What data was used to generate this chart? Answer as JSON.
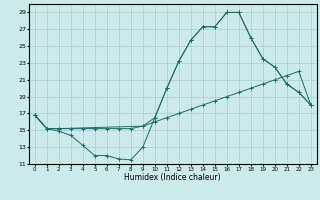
{
  "xlabel": "Humidex (Indice chaleur)",
  "bg_color": "#cceaea",
  "grid_color": "#aacccc",
  "line_color": "#1a6b6b",
  "xlim": [
    -0.5,
    23.5
  ],
  "ylim": [
    11,
    30
  ],
  "yticks": [
    11,
    13,
    15,
    17,
    19,
    21,
    23,
    25,
    27,
    29
  ],
  "xticks": [
    0,
    1,
    2,
    3,
    4,
    5,
    6,
    7,
    8,
    9,
    10,
    11,
    12,
    13,
    14,
    15,
    16,
    17,
    18,
    19,
    20,
    21,
    22,
    23
  ],
  "series1_x": [
    0,
    1,
    2,
    3,
    4,
    5,
    6,
    7,
    8,
    9,
    10,
    11,
    12,
    13,
    14,
    15,
    16,
    17,
    18,
    19,
    20,
    21,
    22,
    23
  ],
  "series1_y": [
    16.8,
    15.2,
    14.9,
    14.4,
    13.2,
    12.0,
    12.0,
    11.6,
    11.5,
    13.0,
    16.5,
    20.0,
    23.2,
    25.7,
    27.3,
    27.3,
    29.0,
    29.0,
    26.0,
    23.5,
    22.5,
    20.5,
    19.5,
    18.0
  ],
  "series2_x": [
    0,
    1,
    2,
    3,
    4,
    5,
    6,
    7,
    8,
    9,
    10,
    11,
    12,
    13,
    14,
    15,
    16,
    17,
    18,
    19,
    20,
    21,
    22,
    23
  ],
  "series2_y": [
    16.8,
    15.2,
    15.2,
    15.2,
    15.2,
    15.2,
    15.2,
    15.2,
    15.2,
    15.5,
    16.0,
    16.5,
    17.0,
    17.5,
    18.0,
    18.5,
    19.0,
    19.5,
    20.0,
    20.5,
    21.0,
    21.5,
    22.0,
    18.0
  ],
  "series3_x": [
    0,
    1,
    2,
    9,
    10,
    11,
    12,
    13,
    14,
    15,
    16,
    17,
    18,
    19,
    20,
    21,
    22,
    23
  ],
  "series3_y": [
    16.8,
    15.2,
    15.2,
    15.5,
    16.5,
    20.0,
    23.2,
    25.7,
    27.3,
    27.3,
    29.0,
    29.0,
    26.0,
    23.5,
    22.5,
    20.5,
    19.5,
    18.0
  ]
}
